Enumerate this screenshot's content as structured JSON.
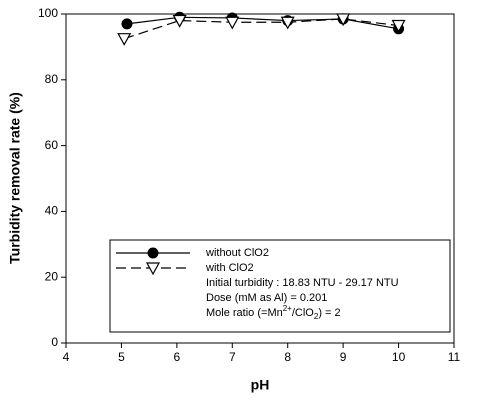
{
  "chart_data": {
    "type": "line",
    "xlabel": "pH",
    "ylabel": "Turbidity removal rate (%)",
    "xlim": [
      4,
      11
    ],
    "xticks": [
      4,
      5,
      6,
      7,
      8,
      9,
      10,
      11
    ],
    "ylim": [
      0,
      100
    ],
    "yticks": [
      0,
      20,
      40,
      60,
      80,
      100
    ],
    "series": [
      {
        "name": "without ClO2",
        "color": "#000000",
        "linestyle": "solid",
        "marker": "circle",
        "x": [
          5.1,
          6.05,
          7,
          8,
          9,
          10
        ],
        "values": [
          97,
          99,
          98.8,
          98,
          98.5,
          95.5
        ]
      },
      {
        "name": "with ClO2",
        "color": "#000000",
        "linestyle": "dashed",
        "marker": "triangle-down",
        "x": [
          5.05,
          6.05,
          7,
          8,
          9,
          10
        ],
        "values": [
          92.5,
          98,
          97.5,
          97.5,
          98.5,
          96.5
        ]
      }
    ],
    "annotations": [
      "Initial turbidity : 18.83 NTU  -  29.17 NTU",
      "Dose (mM as Al) = 0.201",
      [
        "Mole ratio (=Mn",
        "2+",
        "/ClO",
        "2",
        ") = 2"
      ]
    ]
  }
}
